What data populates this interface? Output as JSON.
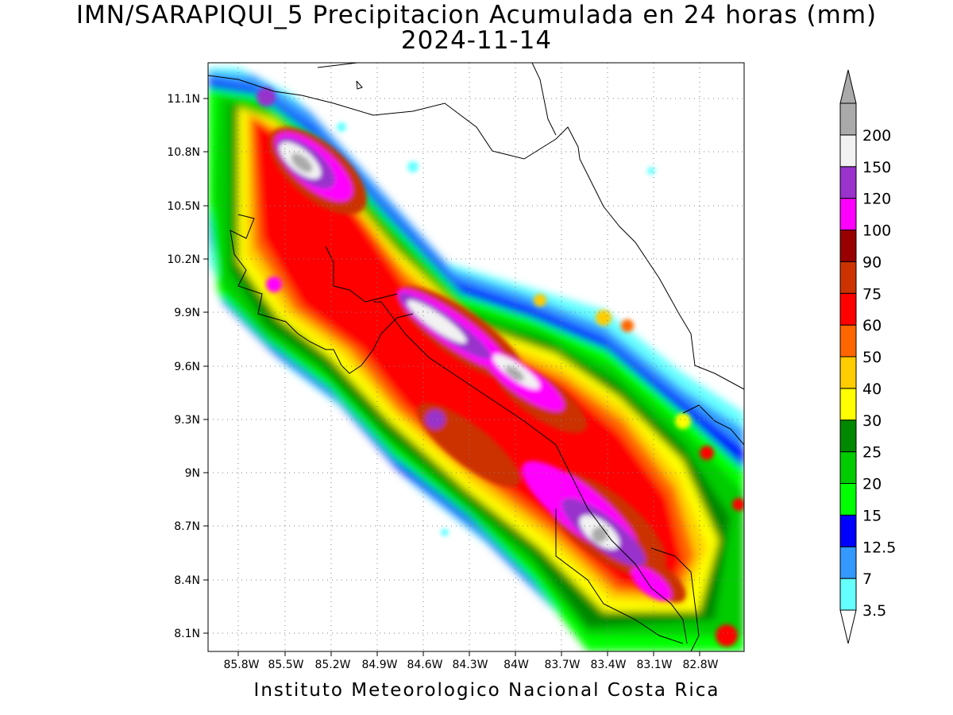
{
  "title_line1": "IMN/SARAPIQUI_5 Precipitacion Acumulada en 24 horas (mm)",
  "title_line2": "2024-11-14",
  "footer": "Instituto Meteorologico Nacional Costa Rica",
  "lat_ticks": [
    "11.1N",
    "10.8N",
    "10.5N",
    "10.2N",
    "9.9N",
    "9.6N",
    "9.3N",
    "9N",
    "8.7N",
    "8.4N",
    "8.1N"
  ],
  "lon_ticks": [
    "85.8W",
    "85.5W",
    "85.2W",
    "84.9W",
    "84.6W",
    "84.3W",
    "84W",
    "83.7W",
    "83.4W",
    "83.1W",
    "82.8W"
  ],
  "colorbar": {
    "levels": [
      "3.5",
      "7",
      "12.5",
      "15",
      "20",
      "25",
      "30",
      "40",
      "50",
      "60",
      "75",
      "90",
      "100",
      "120",
      "150",
      "200"
    ],
    "colors": [
      "#66ffff",
      "#3399ff",
      "#0000ff",
      "#00ff00",
      "#00cc00",
      "#008800",
      "#ffff00",
      "#ffcc00",
      "#ff6600",
      "#ff0000",
      "#cc3300",
      "#990000",
      "#ff00ff",
      "#9933cc",
      "#f2f2f2",
      "#aaaaaa"
    ]
  }
}
